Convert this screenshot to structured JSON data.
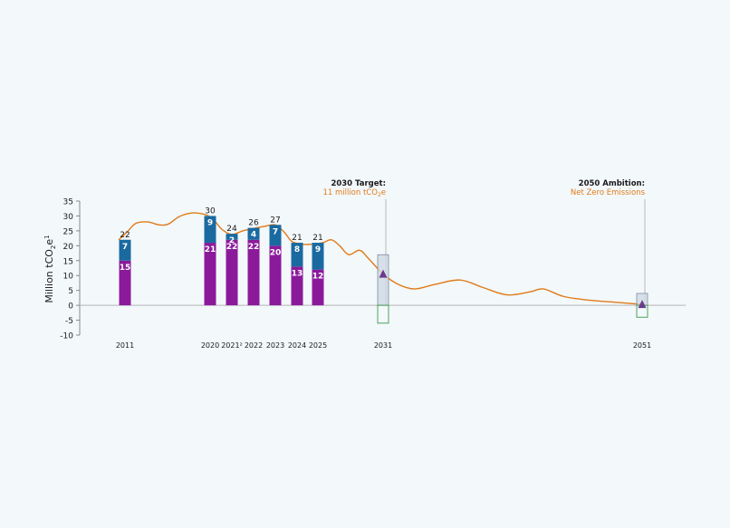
{
  "chart_data": {
    "type": "bar",
    "ylabel": "Million tCO",
    "ylabel_sub": "2",
    "ylabel_tail": "e",
    "ylabel_sup": "1",
    "ylim": [
      -10,
      35
    ],
    "yticks": [
      -10,
      -5,
      0,
      5,
      10,
      15,
      20,
      25,
      30,
      35
    ],
    "colors": {
      "bottom": "#8b1a9b",
      "top": "#1a6aa0",
      "curve": "#e07b1a",
      "marker": "#6b3b8c",
      "range_box": "#cfd8e3",
      "range_box_border": "#6e7f95",
      "negative_box": "#3a9a4a",
      "text": "#1a1a1a",
      "label_inside": "#ffffff"
    },
    "x_labels": [
      {
        "key": "2011",
        "label": "2011"
      },
      {
        "key": "2020",
        "label": "2020"
      },
      {
        "key": "2021",
        "label": "2021²"
      },
      {
        "key": "2022",
        "label": "2022"
      },
      {
        "key": "2023",
        "label": "2023"
      },
      {
        "key": "2024",
        "label": "2024"
      },
      {
        "key": "2025",
        "label": "2025"
      },
      {
        "key": "2031",
        "label": "2031"
      },
      {
        "key": "2051",
        "label": "2051"
      }
    ],
    "bars": [
      {
        "year": "2011",
        "bottom": 15,
        "top": 7,
        "total": 22
      },
      {
        "year": "2020",
        "bottom": 21,
        "top": 9,
        "total": 30
      },
      {
        "year": "2021",
        "bottom": 22,
        "top": 2,
        "total": 24
      },
      {
        "year": "2022",
        "bottom": 22,
        "top": 4,
        "total": 26
      },
      {
        "year": "2023",
        "bottom": 20,
        "top": 7,
        "total": 27
      },
      {
        "year": "2024",
        "bottom": 13,
        "top": 8,
        "total": 21
      },
      {
        "year": "2025",
        "bottom": 12,
        "top": 9,
        "total": 21
      }
    ],
    "ranges": [
      {
        "year": "2031",
        "high": 17,
        "low": -6,
        "marker": 10.5
      },
      {
        "year": "2051",
        "high": 4,
        "low": -4,
        "marker": 0.3
      }
    ],
    "annotations": [
      {
        "key": "2031",
        "title": "2030 Target:",
        "subtitle_pre": "11 million tCO",
        "subtitle_sub": "2",
        "subtitle_post": "e"
      },
      {
        "key": "2051",
        "title": "2050 Ambition:",
        "subtitle_pre": "Net Zero Emissions",
        "subtitle_sub": "",
        "subtitle_post": ""
      }
    ]
  }
}
